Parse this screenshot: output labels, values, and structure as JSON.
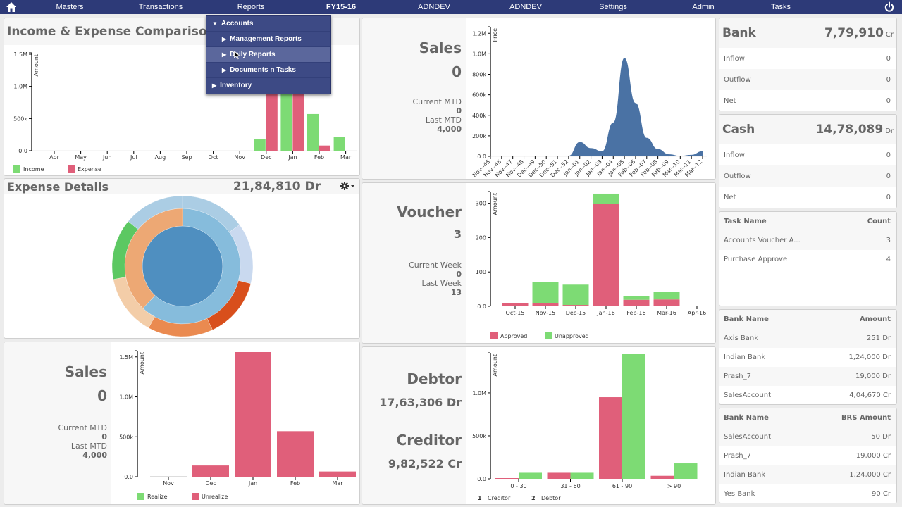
{
  "nav": {
    "items": [
      "Masters",
      "Transactions",
      "Reports",
      "FY15-16",
      "ADNDEV",
      "ADNDEV",
      "Settings",
      "Admin",
      "Tasks"
    ],
    "home_icon": "home-icon",
    "power_icon": "power-icon",
    "bar_color": "#2d3a78"
  },
  "reports_menu": {
    "items": [
      {
        "label": "Accounts",
        "arrow": "▼",
        "level": 0
      },
      {
        "label": "Management Reports",
        "arrow": "▶",
        "level": 1
      },
      {
        "label": "Daily Reports",
        "arrow": "▶",
        "level": 1,
        "hovered": true
      },
      {
        "label": "Documents n Tasks",
        "arrow": "▶",
        "level": 1
      },
      {
        "label": "Inventory",
        "arrow": "▶",
        "level": 0
      }
    ]
  },
  "income_expense": {
    "title": "Income & Expense Comparison"
  },
  "expense_details": {
    "title": "Expense Details",
    "total": "21,84,810 Dr",
    "settings_icon": "gear-icon"
  },
  "sales_top": {
    "title": "Sales",
    "value": "0",
    "current_label": "Current MTD",
    "current_value": "0",
    "last_label": "Last MTD",
    "last_value": "4,000"
  },
  "voucher": {
    "title": "Voucher",
    "value": "3",
    "current_label": "Current Week",
    "current_value": "0",
    "last_label": "Last Week",
    "last_value": "13"
  },
  "sales_bottom": {
    "title": "Sales",
    "value": "0",
    "current_label": "Current MTD",
    "current_value": "0",
    "last_label": "Last MTD",
    "last_value": "4,000"
  },
  "debtor_creditor": {
    "debtor_label": "Debtor",
    "debtor_value": "17,63,306 Dr",
    "creditor_label": "Creditor",
    "creditor_value": "9,82,522 Cr"
  },
  "bank": {
    "title": "Bank",
    "amount": "7,79,910",
    "suffix": "Cr",
    "rows": [
      {
        "label": "Inflow",
        "value": "0"
      },
      {
        "label": "Outflow",
        "value": "0"
      },
      {
        "label": "Net",
        "value": "0"
      }
    ]
  },
  "cash": {
    "title": "Cash",
    "amount": "14,78,089",
    "suffix": "Dr",
    "rows": [
      {
        "label": "Inflow",
        "value": "0"
      },
      {
        "label": "Outflow",
        "value": "0"
      },
      {
        "label": "Net",
        "value": "0"
      }
    ]
  },
  "tasks_table": {
    "headers": [
      "Task Name",
      "Count"
    ],
    "rows": [
      [
        "Accounts Voucher A...",
        "3"
      ],
      [
        "Purchase Approve",
        "4"
      ]
    ]
  },
  "bank_table": {
    "headers": [
      "Bank Name",
      "Amount"
    ],
    "rows": [
      [
        "Axis Bank",
        "251 Dr"
      ],
      [
        "Indian Bank",
        "1,24,000 Dr"
      ],
      [
        "Prash_7",
        "19,000 Dr"
      ],
      [
        "SalesAccount",
        "4,04,670 Cr"
      ]
    ]
  },
  "brs_table": {
    "headers": [
      "Bank Name",
      "BRS Amount"
    ],
    "rows": [
      [
        "SalesAccount",
        "50 Dr"
      ],
      [
        "Prash_7",
        "19,000 Cr"
      ],
      [
        "Indian Bank",
        "1,24,000 Cr"
      ],
      [
        "Yes Bank",
        "90 Cr"
      ]
    ]
  },
  "colors": {
    "green": "#7ddb74",
    "red": "#e05f7a",
    "area_blue": "#4a72a4"
  },
  "chart_data": [
    {
      "id": "income_expense",
      "type": "bar",
      "title": "Income & Expense Comparison",
      "ylabel": "Amount",
      "ylim": [
        0,
        1500000
      ],
      "yticks": [
        0,
        500000,
        1000000,
        1500000
      ],
      "ytick_labels": [
        "0.0",
        "500k",
        "1.0M",
        "1.5M"
      ],
      "categories": [
        "Apr",
        "May",
        "Jun",
        "Jul",
        "Aug",
        "Sep",
        "Oct",
        "Nov",
        "Dec",
        "Jan",
        "Feb",
        "Mar"
      ],
      "series": [
        {
          "name": "Income",
          "color": "#7ddb74",
          "values": [
            0,
            0,
            0,
            0,
            0,
            0,
            0,
            0,
            175000,
            1200000,
            570000,
            210000
          ]
        },
        {
          "name": "Expense",
          "color": "#e05f7a",
          "values": [
            0,
            0,
            0,
            0,
            0,
            0,
            0,
            0,
            1200000,
            1200000,
            80000,
            0
          ]
        }
      ],
      "legend": "bottom-left"
    },
    {
      "id": "expense_details",
      "type": "pie",
      "title": "Expense Details",
      "rings": [
        {
          "name": "inner",
          "slices": [
            {
              "value": 100,
              "color": "#4f8fc0"
            }
          ]
        },
        {
          "name": "middle",
          "slices": [
            {
              "value": 62,
              "color": "#86bcdc"
            },
            {
              "value": 38,
              "color": "#eda874"
            }
          ]
        },
        {
          "name": "outer",
          "slices": [
            {
              "value": 15,
              "color": "#abcde4"
            },
            {
              "value": 14,
              "color": "#c9d9ef"
            },
            {
              "value": 14,
              "color": "#d84f1c"
            },
            {
              "value": 15,
              "color": "#ea8a50"
            },
            {
              "value": 14,
              "color": "#f3cda8"
            },
            {
              "value": 14,
              "color": "#5cc862"
            },
            {
              "value": 14,
              "color": "#abcde4"
            }
          ]
        }
      ]
    },
    {
      "id": "sales_trend",
      "type": "area",
      "ylabel": "Price",
      "ylim": [
        0,
        1250000
      ],
      "yticks": [
        0,
        200000,
        400000,
        600000,
        800000,
        1000000,
        1200000
      ],
      "ytick_labels": [
        "0.0",
        "200k",
        "400k",
        "600k",
        "800k",
        "1.0M",
        "1.2M"
      ],
      "x": [
        "Nov--45",
        "Nov--46",
        "Nov--47",
        "Nov--48",
        "Dec--49",
        "Dec--50",
        "Dec--51",
        "Dec--52",
        "Jan--01",
        "Jan--02",
        "Jan--03",
        "Jan--04",
        "Jan--05",
        "Feb--06",
        "Feb--07",
        "Feb--08",
        "Feb--09",
        "Mar--10",
        "Mar--11",
        "Mar--12"
      ],
      "values": [
        0,
        0,
        0,
        0,
        0,
        0,
        0,
        5000,
        140000,
        80000,
        50000,
        330000,
        960000,
        520000,
        180000,
        70000,
        20000,
        5000,
        15000,
        50000
      ],
      "color": "#4a72a4"
    },
    {
      "id": "voucher",
      "type": "bar",
      "stacked": true,
      "ylabel": "Amount",
      "ylim": [
        0,
        330
      ],
      "yticks": [
        0,
        100,
        200,
        300
      ],
      "ytick_labels": [
        "0.0",
        "100",
        "200",
        "300"
      ],
      "categories": [
        "Oct-15",
        "Nov-15",
        "Dec-15",
        "Jan-16",
        "Feb-16",
        "Mar-16",
        "Apr-16"
      ],
      "series": [
        {
          "name": "Approved",
          "color": "#e05f7a",
          "values": [
            9,
            9,
            4,
            298,
            19,
            20,
            2
          ]
        },
        {
          "name": "Unapproved",
          "color": "#7ddb74",
          "values": [
            0,
            62,
            59,
            30,
            10,
            23,
            0
          ]
        }
      ],
      "legend": "bottom-left"
    },
    {
      "id": "sales_realize",
      "type": "bar",
      "ylabel": "Amount",
      "ylim": [
        0,
        1560000
      ],
      "yticks": [
        0,
        500000,
        1000000,
        1500000
      ],
      "ytick_labels": [
        "0.0",
        "500k",
        "1.0M",
        "1.5M"
      ],
      "categories": [
        "Nov",
        "Dec",
        "Jan",
        "Feb",
        "Mar"
      ],
      "series": [
        {
          "name": "Realize",
          "color": "#7ddb74",
          "values": [
            0,
            0,
            0,
            0,
            0
          ]
        },
        {
          "name": "Unrealize",
          "color": "#e05f7a",
          "values": [
            3000,
            140000,
            1560000,
            570000,
            65000
          ]
        }
      ],
      "legend": "bottom-left"
    },
    {
      "id": "debtor_creditor",
      "type": "bar",
      "ylabel": "Amount",
      "ylim": [
        0,
        1450000
      ],
      "yticks": [
        0,
        500000,
        1000000
      ],
      "ytick_labels": [
        "0.0",
        "500k",
        "1.0M"
      ],
      "categories": [
        "0 - 30",
        "31 - 60",
        "61 - 90",
        "> 90"
      ],
      "series": [
        {
          "name": "Creditor",
          "number": "1",
          "color": "#e05f7a",
          "values": [
            3000,
            70000,
            950000,
            35000
          ]
        },
        {
          "name": "Debtor",
          "number": "2",
          "color": "#7ddb74",
          "values": [
            70000,
            70000,
            1450000,
            180000
          ]
        }
      ],
      "legend": "bottom-left"
    }
  ]
}
